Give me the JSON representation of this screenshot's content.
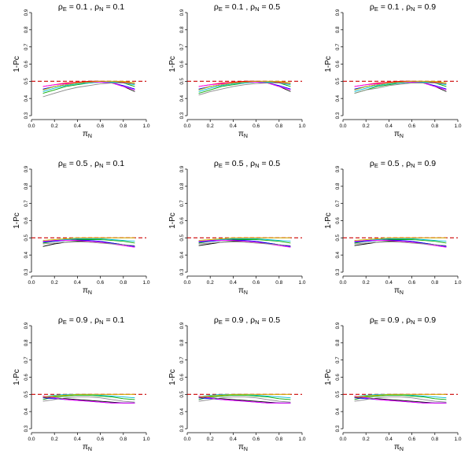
{
  "chart_data": {
    "type": "line",
    "layout": "3x3 grid",
    "ylabel": "1-Pc",
    "xlabel": "πN",
    "reference_line": {
      "y": 0.5,
      "color": "#cc0000",
      "style": "dashed"
    },
    "x_ticks": [
      "0.0",
      "0.2",
      "0.4",
      "0.6",
      "0.8",
      "1.0"
    ],
    "y_ticks": [
      "0.3",
      "0.4",
      "0.5",
      "0.6",
      "0.7",
      "0.8",
      "0.9"
    ],
    "xlim": [
      0,
      1
    ],
    "ylim": [
      0.3,
      0.9
    ],
    "x": [
      0.1,
      0.2,
      0.3,
      0.4,
      0.5,
      0.6,
      0.7,
      0.8,
      0.9
    ],
    "series_colors": [
      "#000000",
      "#ff0000",
      "#00aa00",
      "#0000ff",
      "#00bcd4",
      "#ff00ff",
      "#c8c800",
      "#888888"
    ],
    "panels": [
      {
        "title": {
          "rhoE": "0.1",
          "rhoN": "0.1"
        },
        "series": [
          {
            "values": [
              0.45,
              0.47,
              0.48,
              0.49,
              0.5,
              0.5,
              0.49,
              0.47,
              0.44
            ]
          },
          {
            "values": [
              0.47,
              0.48,
              0.49,
              0.495,
              0.5,
              0.5,
              0.5,
              0.495,
              0.49
            ]
          },
          {
            "values": [
              0.43,
              0.45,
              0.47,
              0.48,
              0.49,
              0.495,
              0.495,
              0.49,
              0.47
            ]
          },
          {
            "values": [
              0.455,
              0.47,
              0.48,
              0.49,
              0.495,
              0.495,
              0.49,
              0.475,
              0.455
            ]
          },
          {
            "values": [
              0.44,
              0.46,
              0.475,
              0.485,
              0.49,
              0.495,
              0.495,
              0.49,
              0.48
            ]
          },
          {
            "values": [
              0.47,
              0.48,
              0.485,
              0.49,
              0.495,
              0.495,
              0.49,
              0.47,
              0.45
            ]
          },
          {
            "values": [
              0.45,
              0.47,
              0.48,
              0.49,
              0.495,
              0.5,
              0.5,
              0.5,
              0.49
            ]
          },
          {
            "values": [
              0.41,
              0.43,
              0.45,
              0.465,
              0.475,
              0.485,
              0.49,
              0.49,
              0.485
            ]
          }
        ]
      },
      {
        "title": {
          "rhoE": "0.1",
          "rhoN": "0.5"
        },
        "series": [
          {
            "values": [
              0.45,
              0.47,
              0.48,
              0.49,
              0.5,
              0.5,
              0.49,
              0.47,
              0.44
            ]
          },
          {
            "values": [
              0.47,
              0.48,
              0.49,
              0.495,
              0.5,
              0.5,
              0.5,
              0.495,
              0.49
            ]
          },
          {
            "values": [
              0.43,
              0.45,
              0.47,
              0.48,
              0.49,
              0.495,
              0.495,
              0.49,
              0.47
            ]
          },
          {
            "values": [
              0.455,
              0.47,
              0.48,
              0.49,
              0.495,
              0.495,
              0.49,
              0.475,
              0.455
            ]
          },
          {
            "values": [
              0.44,
              0.46,
              0.475,
              0.485,
              0.49,
              0.495,
              0.495,
              0.49,
              0.48
            ]
          },
          {
            "values": [
              0.47,
              0.48,
              0.485,
              0.49,
              0.495,
              0.495,
              0.49,
              0.47,
              0.45
            ]
          },
          {
            "values": [
              0.45,
              0.47,
              0.48,
              0.49,
              0.495,
              0.5,
              0.5,
              0.5,
              0.49
            ]
          },
          {
            "values": [
              0.42,
              0.44,
              0.455,
              0.47,
              0.48,
              0.487,
              0.49,
              0.49,
              0.485
            ]
          }
        ]
      },
      {
        "title": {
          "rhoE": "0.1",
          "rhoN": "0.9"
        },
        "series": [
          {
            "values": [
              0.45,
              0.47,
              0.48,
              0.49,
              0.5,
              0.5,
              0.49,
              0.47,
              0.44
            ]
          },
          {
            "values": [
              0.47,
              0.48,
              0.49,
              0.495,
              0.5,
              0.5,
              0.5,
              0.495,
              0.49
            ]
          },
          {
            "values": [
              0.43,
              0.45,
              0.47,
              0.48,
              0.49,
              0.495,
              0.495,
              0.49,
              0.47
            ]
          },
          {
            "values": [
              0.455,
              0.47,
              0.48,
              0.49,
              0.495,
              0.495,
              0.49,
              0.475,
              0.455
            ]
          },
          {
            "values": [
              0.44,
              0.46,
              0.475,
              0.485,
              0.49,
              0.495,
              0.495,
              0.49,
              0.48
            ]
          },
          {
            "values": [
              0.47,
              0.48,
              0.485,
              0.49,
              0.495,
              0.495,
              0.49,
              0.47,
              0.45
            ]
          },
          {
            "values": [
              0.45,
              0.47,
              0.48,
              0.49,
              0.495,
              0.5,
              0.5,
              0.5,
              0.49
            ]
          },
          {
            "values": [
              0.43,
              0.45,
              0.46,
              0.475,
              0.483,
              0.49,
              0.49,
              0.49,
              0.485
            ]
          }
        ]
      },
      {
        "title": {
          "rhoE": "0.5",
          "rhoN": "0.1"
        },
        "series": [
          {
            "values": [
              0.45,
              0.465,
              0.475,
              0.48,
              0.48,
              0.475,
              0.47,
              0.46,
              0.45
            ]
          },
          {
            "values": [
              0.48,
              0.485,
              0.49,
              0.495,
              0.5,
              0.5,
              0.5,
              0.5,
              0.5
            ]
          },
          {
            "values": [
              0.47,
              0.48,
              0.485,
              0.49,
              0.49,
              0.49,
              0.485,
              0.48,
              0.47
            ]
          },
          {
            "values": [
              0.475,
              0.48,
              0.485,
              0.487,
              0.485,
              0.48,
              0.47,
              0.46,
              0.45
            ]
          },
          {
            "values": [
              0.48,
              0.485,
              0.49,
              0.495,
              0.495,
              0.495,
              0.49,
              0.485,
              0.48
            ]
          },
          {
            "values": [
              0.48,
              0.485,
              0.485,
              0.485,
              0.48,
              0.475,
              0.465,
              0.455,
              0.445
            ]
          },
          {
            "values": [
              0.485,
              0.49,
              0.495,
              0.5,
              0.5,
              0.5,
              0.5,
              0.5,
              0.5
            ]
          },
          {
            "values": [
              0.465,
              0.47,
              0.475,
              0.477,
              0.475,
              0.47,
              0.465,
              0.46,
              0.455
            ]
          }
        ]
      },
      {
        "title": {
          "rhoE": "0.5",
          "rhoN": "0.5"
        },
        "series": [
          {
            "values": [
              0.455,
              0.465,
              0.475,
              0.48,
              0.48,
              0.475,
              0.47,
              0.46,
              0.45
            ]
          },
          {
            "values": [
              0.48,
              0.485,
              0.49,
              0.495,
              0.5,
              0.5,
              0.5,
              0.5,
              0.5
            ]
          },
          {
            "values": [
              0.47,
              0.48,
              0.485,
              0.49,
              0.49,
              0.49,
              0.485,
              0.48,
              0.47
            ]
          },
          {
            "values": [
              0.475,
              0.48,
              0.485,
              0.487,
              0.485,
              0.48,
              0.47,
              0.46,
              0.45
            ]
          },
          {
            "values": [
              0.48,
              0.485,
              0.49,
              0.495,
              0.495,
              0.495,
              0.49,
              0.485,
              0.48
            ]
          },
          {
            "values": [
              0.48,
              0.485,
              0.485,
              0.485,
              0.48,
              0.475,
              0.465,
              0.455,
              0.445
            ]
          },
          {
            "values": [
              0.485,
              0.49,
              0.495,
              0.5,
              0.5,
              0.5,
              0.5,
              0.5,
              0.5
            ]
          },
          {
            "values": [
              0.465,
              0.47,
              0.475,
              0.477,
              0.475,
              0.47,
              0.465,
              0.46,
              0.455
            ]
          }
        ]
      },
      {
        "title": {
          "rhoE": "0.5",
          "rhoN": "0.9"
        },
        "series": [
          {
            "values": [
              0.455,
              0.465,
              0.475,
              0.48,
              0.48,
              0.475,
              0.47,
              0.46,
              0.45
            ]
          },
          {
            "values": [
              0.48,
              0.485,
              0.49,
              0.495,
              0.5,
              0.5,
              0.5,
              0.5,
              0.5
            ]
          },
          {
            "values": [
              0.47,
              0.48,
              0.485,
              0.49,
              0.49,
              0.49,
              0.485,
              0.48,
              0.47
            ]
          },
          {
            "values": [
              0.475,
              0.48,
              0.485,
              0.487,
              0.485,
              0.48,
              0.47,
              0.46,
              0.45
            ]
          },
          {
            "values": [
              0.48,
              0.485,
              0.49,
              0.495,
              0.495,
              0.495,
              0.49,
              0.485,
              0.48
            ]
          },
          {
            "values": [
              0.48,
              0.485,
              0.485,
              0.485,
              0.48,
              0.475,
              0.465,
              0.455,
              0.445
            ]
          },
          {
            "values": [
              0.485,
              0.49,
              0.495,
              0.5,
              0.5,
              0.5,
              0.5,
              0.5,
              0.5
            ]
          },
          {
            "values": [
              0.465,
              0.47,
              0.475,
              0.477,
              0.475,
              0.47,
              0.465,
              0.46,
              0.455
            ]
          }
        ]
      },
      {
        "title": {
          "rhoE": "0.9",
          "rhoN": "0.1"
        },
        "series": [
          {
            "values": [
              0.485,
              0.48,
              0.475,
              0.47,
              0.465,
              0.46,
              0.455,
              0.45,
              0.45
            ]
          },
          {
            "values": [
              0.48,
              0.49,
              0.495,
              0.5,
              0.5,
              0.5,
              0.5,
              0.5,
              0.5
            ]
          },
          {
            "values": [
              0.47,
              0.485,
              0.49,
              0.495,
              0.495,
              0.49,
              0.485,
              0.475,
              0.47
            ]
          },
          {
            "values": [
              0.48,
              0.475,
              0.47,
              0.465,
              0.46,
              0.455,
              0.45,
              0.45,
              0.45
            ]
          },
          {
            "values": [
              0.485,
              0.495,
              0.5,
              0.5,
              0.5,
              0.495,
              0.49,
              0.485,
              0.48
            ]
          },
          {
            "values": [
              0.49,
              0.48,
              0.47,
              0.465,
              0.46,
              0.455,
              0.45,
              0.45,
              0.45
            ]
          },
          {
            "values": [
              0.485,
              0.49,
              0.495,
              0.5,
              0.5,
              0.5,
              0.5,
              0.5,
              0.5
            ]
          },
          {
            "values": [
              0.46,
              0.47,
              0.48,
              0.485,
              0.485,
              0.48,
              0.47,
              0.46,
              0.455
            ]
          }
        ]
      },
      {
        "title": {
          "rhoE": "0.9",
          "rhoN": "0.5"
        },
        "series": [
          {
            "values": [
              0.485,
              0.48,
              0.475,
              0.47,
              0.465,
              0.46,
              0.455,
              0.45,
              0.45
            ]
          },
          {
            "values": [
              0.48,
              0.49,
              0.495,
              0.5,
              0.5,
              0.5,
              0.5,
              0.5,
              0.5
            ]
          },
          {
            "values": [
              0.47,
              0.485,
              0.49,
              0.495,
              0.495,
              0.49,
              0.485,
              0.475,
              0.47
            ]
          },
          {
            "values": [
              0.48,
              0.475,
              0.47,
              0.465,
              0.46,
              0.455,
              0.45,
              0.45,
              0.45
            ]
          },
          {
            "values": [
              0.485,
              0.495,
              0.5,
              0.5,
              0.5,
              0.495,
              0.49,
              0.485,
              0.48
            ]
          },
          {
            "values": [
              0.49,
              0.48,
              0.47,
              0.465,
              0.46,
              0.455,
              0.45,
              0.45,
              0.45
            ]
          },
          {
            "values": [
              0.485,
              0.49,
              0.495,
              0.5,
              0.5,
              0.5,
              0.5,
              0.5,
              0.5
            ]
          },
          {
            "values": [
              0.46,
              0.47,
              0.48,
              0.485,
              0.485,
              0.48,
              0.47,
              0.46,
              0.455
            ]
          }
        ]
      },
      {
        "title": {
          "rhoE": "0.9",
          "rhoN": "0.9"
        },
        "series": [
          {
            "values": [
              0.485,
              0.48,
              0.475,
              0.47,
              0.465,
              0.46,
              0.455,
              0.45,
              0.45
            ]
          },
          {
            "values": [
              0.48,
              0.49,
              0.495,
              0.5,
              0.5,
              0.5,
              0.5,
              0.5,
              0.5
            ]
          },
          {
            "values": [
              0.47,
              0.485,
              0.49,
              0.495,
              0.495,
              0.49,
              0.485,
              0.475,
              0.47
            ]
          },
          {
            "values": [
              0.48,
              0.475,
              0.47,
              0.465,
              0.46,
              0.455,
              0.45,
              0.45,
              0.45
            ]
          },
          {
            "values": [
              0.485,
              0.495,
              0.5,
              0.5,
              0.5,
              0.495,
              0.49,
              0.485,
              0.48
            ]
          },
          {
            "values": [
              0.49,
              0.48,
              0.47,
              0.465,
              0.46,
              0.455,
              0.45,
              0.45,
              0.45
            ]
          },
          {
            "values": [
              0.485,
              0.49,
              0.495,
              0.5,
              0.5,
              0.5,
              0.5,
              0.5,
              0.5
            ]
          },
          {
            "values": [
              0.46,
              0.47,
              0.48,
              0.485,
              0.485,
              0.48,
              0.47,
              0.46,
              0.455
            ]
          }
        ]
      }
    ]
  }
}
